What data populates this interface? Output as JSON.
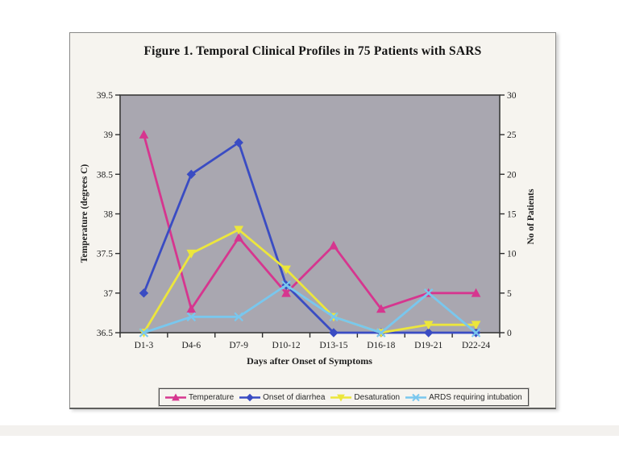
{
  "figure": {
    "title": "Figure 1. Temporal Clinical Profiles in 75 Patients with SARS"
  },
  "chart_data": {
    "type": "line",
    "categories": [
      "D1-3",
      "D4-6",
      "D7-9",
      "D10-12",
      "D13-15",
      "D16-18",
      "D19-21",
      "D22-24"
    ],
    "xlabel": "Days after Onset of Symptoms",
    "left_axis": {
      "label": "Temperature (degrees C)",
      "min": 36.5,
      "max": 39.5,
      "ticks": [
        "36.5",
        "37",
        "37.5",
        "38",
        "38.5",
        "39",
        "39.5"
      ]
    },
    "right_axis": {
      "label": "No of Patients",
      "min": 0,
      "max": 30,
      "ticks": [
        "0",
        "5",
        "10",
        "15",
        "20",
        "25",
        "30"
      ]
    },
    "plot_bg": "#a9a7b0",
    "grid": false,
    "legend_position": "bottom",
    "series": [
      {
        "name": "Temperature",
        "axis": "left",
        "color": "#d6368f",
        "marker": "triangle-up",
        "values": [
          39.0,
          36.8,
          37.7,
          37.0,
          37.6,
          36.8,
          37.0,
          37.0
        ]
      },
      {
        "name": "Onset of diarrhea",
        "axis": "right",
        "color": "#3a4cc3",
        "marker": "diamond",
        "values": [
          5,
          20,
          24,
          6,
          0,
          0,
          0,
          0
        ]
      },
      {
        "name": "Desaturation",
        "axis": "right",
        "color": "#ece63c",
        "marker": "triangle-down",
        "values": [
          0,
          10,
          13,
          8,
          2,
          0,
          1,
          1
        ]
      },
      {
        "name": "ARDS requiring intubation",
        "axis": "right",
        "color": "#79c7ee",
        "marker": "x",
        "values": [
          0,
          2,
          2,
          6,
          2,
          0,
          5,
          0
        ]
      }
    ]
  }
}
